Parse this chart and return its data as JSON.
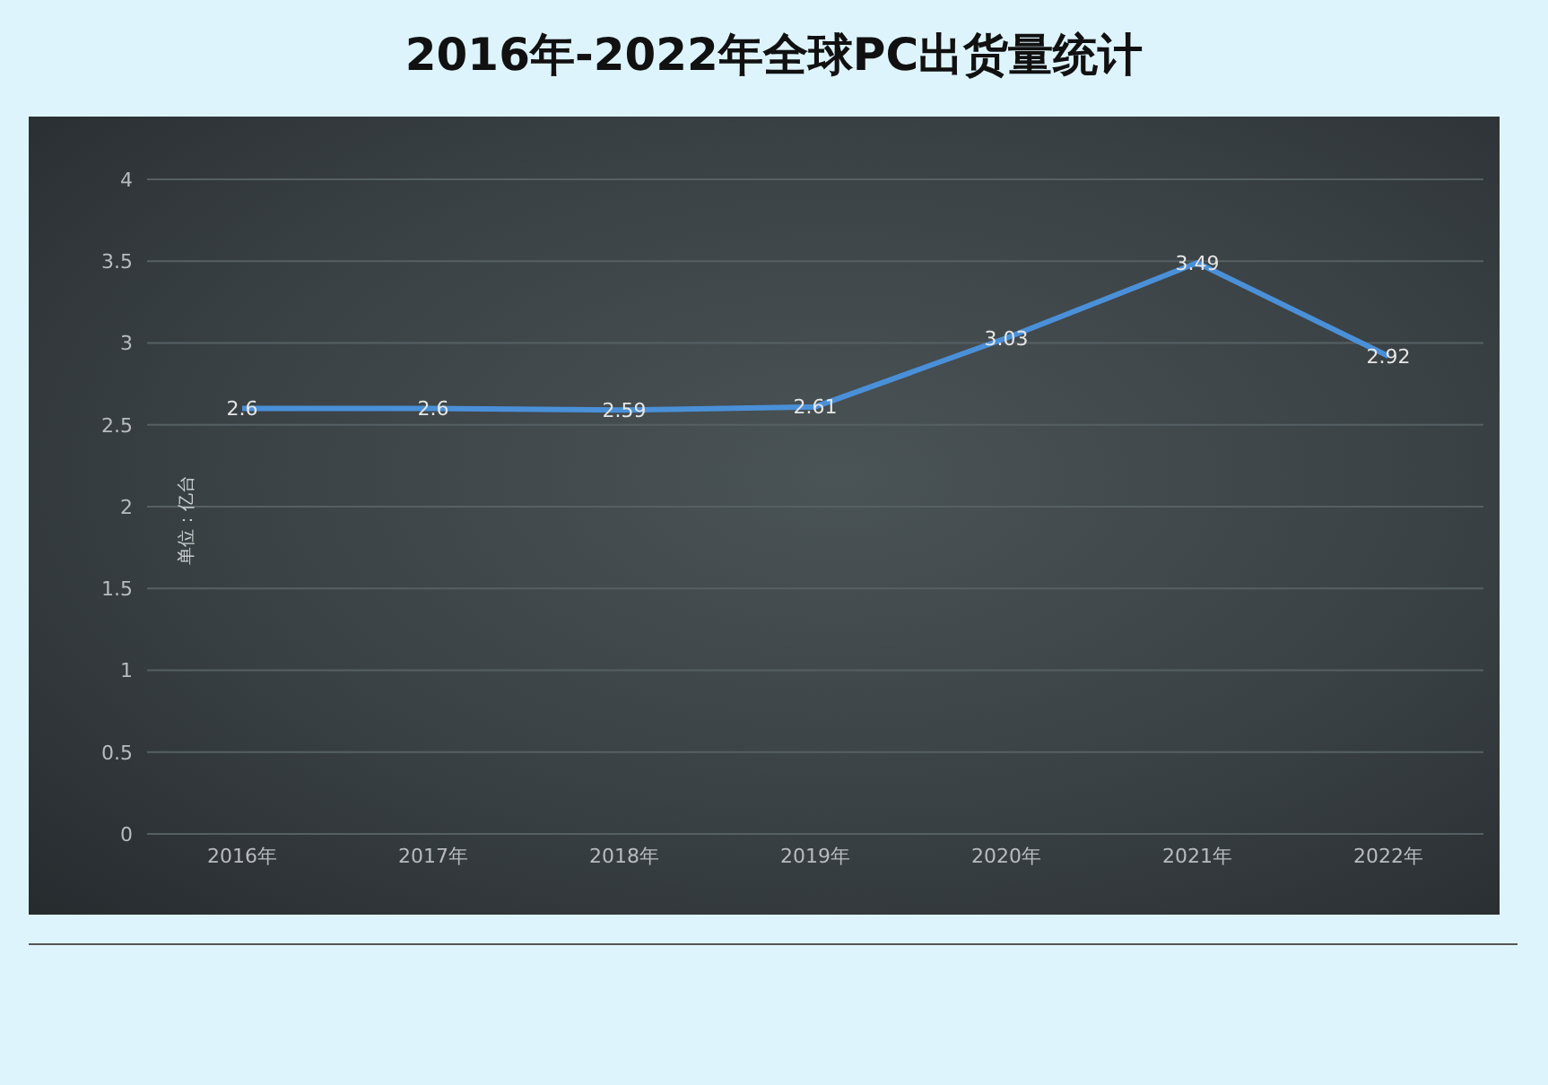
{
  "chart_data": {
    "type": "line",
    "title": "2016年-2022年全球PC出货量统计",
    "ylabel": "单位：亿台",
    "categories": [
      "2016年",
      "2017年",
      "2018年",
      "2019年",
      "2020年",
      "2021年",
      "2022年"
    ],
    "values": [
      2.6,
      2.6,
      2.59,
      2.61,
      3.03,
      3.49,
      2.92
    ],
    "color": "#4a90d9",
    "ylim": [
      0,
      4
    ],
    "yticks": [
      0,
      0.5,
      1,
      1.5,
      2,
      2.5,
      3,
      3.5,
      4
    ],
    "grid": "y",
    "marker": "none",
    "line_style": "solid",
    "data_labels": true
  }
}
